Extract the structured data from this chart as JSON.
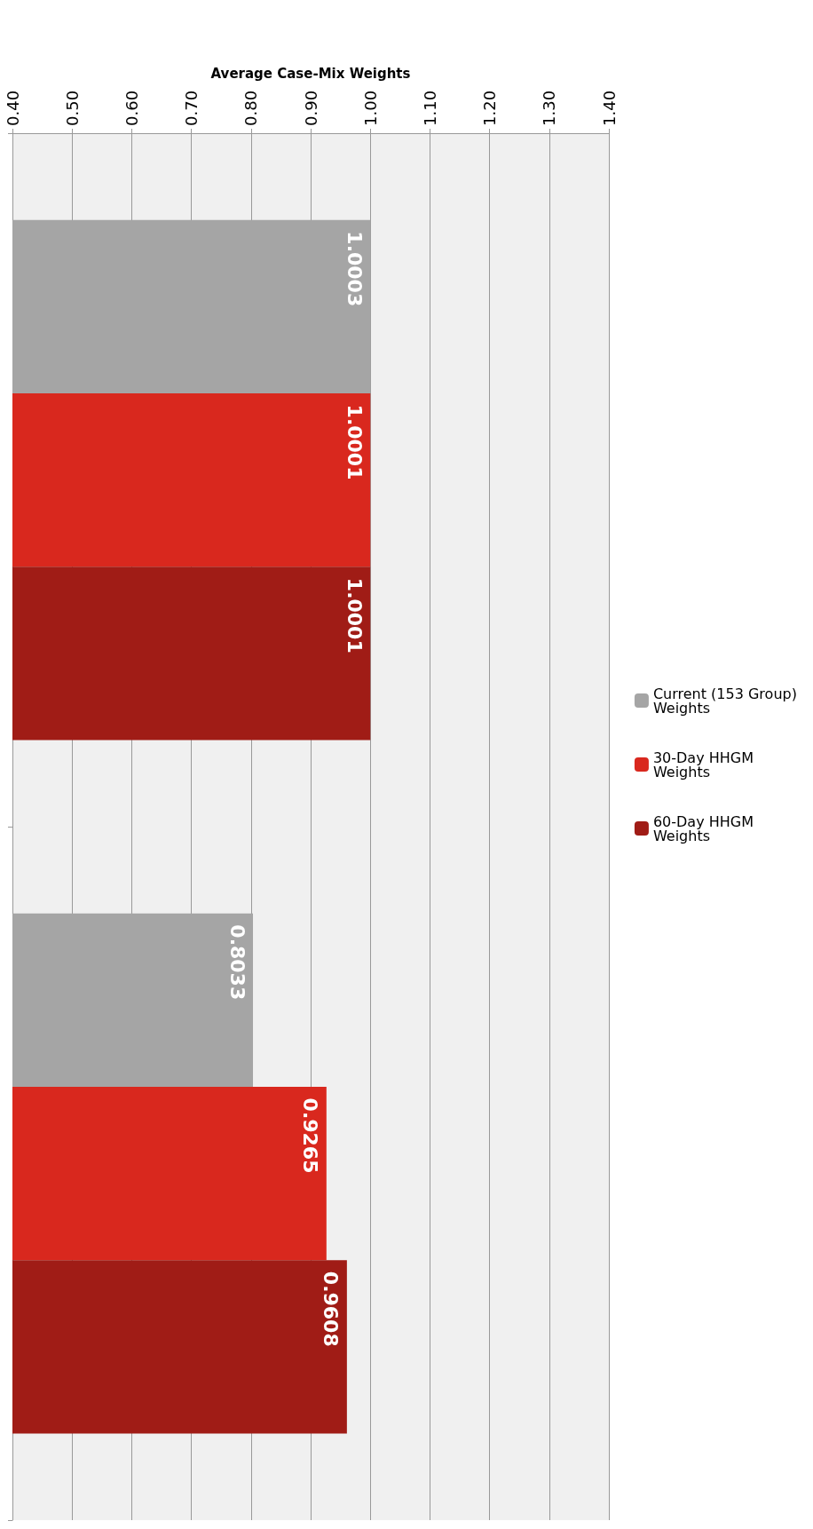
{
  "chart_data": {
    "type": "bar",
    "orientation": "horizontal",
    "xlabel": "Average Case-Mix Weights",
    "categories": [
      null,
      null
    ],
    "series": [
      {
        "name": "Current (153 Group) Weights",
        "color": "#a5a5a5",
        "values": [
          1.0003,
          0.8033
        ]
      },
      {
        "name": "30-Day HHGM Weights",
        "color": "#d9281e",
        "values": [
          1.0001,
          0.9265
        ]
      },
      {
        "name": "60-Day HHGM Weights",
        "color": "#a01c16",
        "values": [
          1.0001,
          0.9608
        ]
      }
    ],
    "xlim": [
      0.4,
      1.4
    ],
    "xticks": [
      {
        "value": 0.4,
        "label": "0.40"
      },
      {
        "value": 0.5,
        "label": "0.50"
      },
      {
        "value": 0.6,
        "label": "0.60"
      },
      {
        "value": 0.7,
        "label": "0.70"
      },
      {
        "value": 0.8,
        "label": "0.80"
      },
      {
        "value": 0.9,
        "label": "0.90"
      },
      {
        "value": 1.0,
        "label": "1.00"
      },
      {
        "value": 1.1,
        "label": "1.10"
      },
      {
        "value": 1.2,
        "label": "1.20"
      },
      {
        "value": 1.3,
        "label": "1.30"
      },
      {
        "value": 1.4,
        "label": "1.40"
      }
    ],
    "grid": "x",
    "legend": "right",
    "data_labels": true
  }
}
